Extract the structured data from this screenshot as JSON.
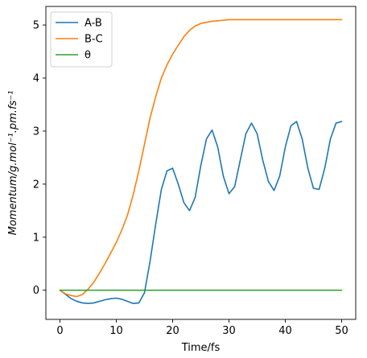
{
  "chart_data": {
    "type": "line",
    "xlabel": "Time/fs",
    "ylabel": "Momentum/g.mol⁻¹.pm.fs⁻¹",
    "xlim": [
      -2.5,
      52.5
    ],
    "ylim": [
      -0.55,
      5.35
    ],
    "xticks": [
      0,
      10,
      20,
      30,
      40,
      50
    ],
    "yticks": [
      0,
      1,
      2,
      3,
      4,
      5
    ],
    "grid": false,
    "legend_position": "top-left",
    "series": [
      {
        "name": "A-B",
        "color": "#1f77b4",
        "x": [
          0,
          1,
          2,
          3,
          4,
          5,
          6,
          7,
          8,
          9,
          10,
          11,
          12,
          13,
          14,
          15,
          16,
          17,
          18,
          19,
          20,
          21,
          22,
          23,
          24,
          25,
          26,
          27,
          28,
          29,
          30,
          31,
          32,
          33,
          34,
          35,
          36,
          37,
          38,
          39,
          40,
          41,
          42,
          43,
          44,
          45,
          46,
          47,
          48,
          49,
          50
        ],
        "values": [
          0.0,
          -0.08,
          -0.16,
          -0.21,
          -0.24,
          -0.25,
          -0.24,
          -0.21,
          -0.18,
          -0.16,
          -0.15,
          -0.17,
          -0.21,
          -0.25,
          -0.24,
          -0.05,
          0.55,
          1.25,
          1.9,
          2.25,
          2.3,
          2.0,
          1.65,
          1.5,
          1.75,
          2.35,
          2.85,
          3.02,
          2.7,
          2.15,
          1.82,
          1.95,
          2.45,
          2.95,
          3.15,
          2.95,
          2.45,
          2.05,
          1.88,
          2.15,
          2.7,
          3.1,
          3.18,
          2.85,
          2.3,
          1.92,
          1.9,
          2.3,
          2.85,
          3.15,
          3.18
        ]
      },
      {
        "name": "B-C",
        "color": "#ff7f0e",
        "x": [
          0,
          1,
          2,
          3,
          4,
          5,
          6,
          7,
          8,
          9,
          10,
          11,
          12,
          13,
          14,
          15,
          16,
          17,
          18,
          19,
          20,
          21,
          22,
          23,
          24,
          25,
          26,
          27,
          28,
          29,
          30,
          32,
          34,
          36,
          38,
          40,
          42,
          44,
          46,
          48,
          50
        ],
        "values": [
          0.0,
          -0.07,
          -0.1,
          -0.12,
          -0.08,
          0.02,
          0.15,
          0.32,
          0.5,
          0.7,
          0.9,
          1.14,
          1.42,
          1.8,
          2.25,
          2.75,
          3.25,
          3.65,
          4.0,
          4.25,
          4.45,
          4.62,
          4.78,
          4.9,
          4.98,
          5.03,
          5.05,
          5.07,
          5.08,
          5.09,
          5.1,
          5.1,
          5.1,
          5.1,
          5.1,
          5.1,
          5.1,
          5.1,
          5.1,
          5.1,
          5.1
        ]
      },
      {
        "name": "θ",
        "color": "#2ca02c",
        "x": [
          0,
          50
        ],
        "values": [
          0.0,
          0.0
        ]
      }
    ]
  }
}
